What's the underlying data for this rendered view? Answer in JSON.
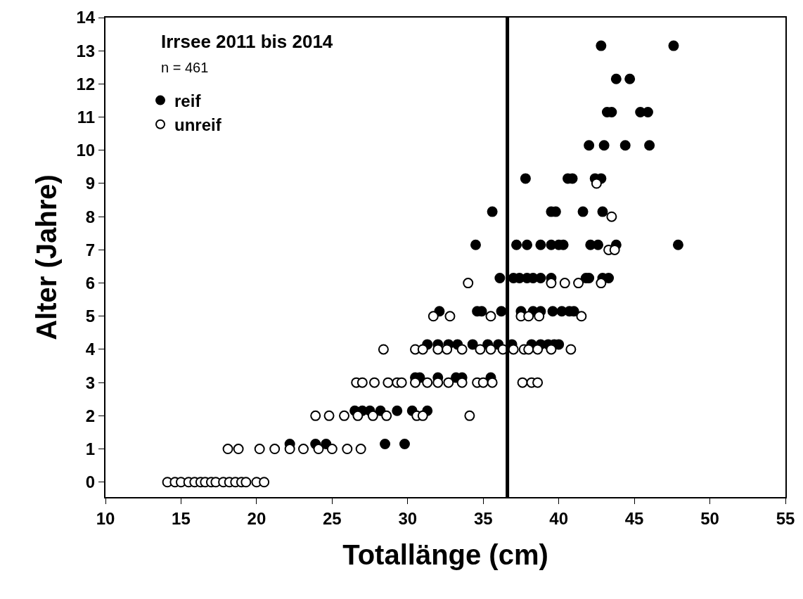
{
  "chart_data": {
    "type": "scatter",
    "xlabel": "Totallänge (cm)",
    "ylabel": "Alter (Jahre)",
    "annotations": [
      "Irrsee 2011 bis 2014",
      "n = 461"
    ],
    "series": [
      {
        "name": "reif",
        "color": "#000000",
        "marker": "circle",
        "x": [
          22.2,
          23.9,
          24.6,
          28.5,
          29.8,
          26.5,
          27.0,
          27.5,
          28.2,
          29.3,
          30.3,
          31.3,
          30.5,
          30.8,
          32.0,
          33.2,
          33.6,
          35.5,
          31.3,
          32.0,
          32.7,
          33.3,
          34.3,
          35.3,
          36.0,
          36.9,
          38.2,
          38.8,
          39.3,
          39.7,
          40.0,
          32.1,
          34.6,
          34.9,
          36.2,
          37.5,
          38.3,
          38.8,
          39.6,
          40.2,
          40.7,
          41.0,
          36.1,
          37.0,
          37.4,
          37.9,
          38.3,
          38.8,
          39.5,
          41.8,
          42.0,
          42.9,
          43.3,
          34.5,
          37.2,
          37.9,
          38.8,
          39.5,
          40.0,
          40.3,
          42.1,
          42.6,
          43.8,
          47.9,
          35.6,
          39.5,
          39.8,
          41.6,
          42.9,
          37.8,
          40.6,
          40.9,
          42.4,
          42.8,
          42.0,
          43.0,
          44.4,
          46.0,
          43.2,
          43.5,
          45.4,
          45.9,
          43.8,
          44.7,
          42.8,
          47.6
        ],
        "values": [
          1.15,
          1.15,
          1.15,
          1.15,
          1.15,
          2.15,
          2.15,
          2.15,
          2.15,
          2.15,
          2.15,
          2.15,
          3.15,
          3.15,
          3.15,
          3.15,
          3.15,
          3.15,
          4.15,
          4.15,
          4.15,
          4.15,
          4.15,
          4.15,
          4.15,
          4.15,
          4.15,
          4.15,
          4.15,
          4.15,
          4.15,
          5.15,
          5.15,
          5.15,
          5.15,
          5.15,
          5.15,
          5.15,
          5.15,
          5.15,
          5.15,
          5.15,
          6.15,
          6.15,
          6.15,
          6.15,
          6.15,
          6.15,
          6.15,
          6.15,
          6.15,
          6.15,
          6.15,
          7.15,
          7.15,
          7.15,
          7.15,
          7.15,
          7.15,
          7.15,
          7.15,
          7.15,
          7.15,
          7.15,
          8.15,
          8.15,
          8.15,
          8.15,
          8.15,
          9.15,
          9.15,
          9.15,
          9.15,
          9.15,
          10.15,
          10.15,
          10.15,
          10.15,
          11.15,
          11.15,
          11.15,
          11.15,
          12.15,
          12.15,
          13.15,
          13.15
        ]
      },
      {
        "name": "unreif",
        "color": "#ffffff",
        "marker": "circle",
        "x": [
          14.1,
          14.6,
          15.0,
          15.5,
          15.9,
          16.3,
          16.6,
          17.0,
          17.3,
          17.8,
          18.2,
          18.6,
          19.0,
          19.3,
          20.0,
          20.5,
          18.1,
          18.8,
          20.2,
          21.2,
          22.2,
          23.1,
          24.1,
          25.0,
          26.0,
          26.9,
          23.9,
          24.8,
          25.8,
          26.7,
          27.7,
          28.6,
          30.6,
          31.0,
          34.1,
          26.6,
          27.0,
          27.8,
          28.7,
          29.3,
          29.6,
          30.5,
          31.3,
          32.0,
          32.7,
          33.6,
          34.6,
          35.0,
          35.6,
          37.6,
          38.2,
          38.6,
          28.4,
          30.5,
          31.0,
          32.0,
          32.6,
          33.6,
          34.8,
          35.5,
          36.3,
          37.0,
          37.7,
          38.0,
          38.6,
          39.5,
          40.8,
          31.7,
          32.8,
          35.5,
          37.5,
          38.0,
          38.7,
          41.5,
          34.0,
          39.5,
          40.4,
          41.3,
          42.8,
          43.3,
          43.7,
          43.5,
          42.5
        ],
        "values": [
          0,
          0,
          0,
          0,
          0,
          0,
          0,
          0,
          0,
          0,
          0,
          0,
          0,
          0,
          0,
          0,
          1,
          1,
          1,
          1,
          1,
          1,
          1,
          1,
          1,
          1,
          2,
          2,
          2,
          2,
          2,
          2,
          2,
          2,
          2,
          3,
          3,
          3,
          3,
          3,
          3,
          3,
          3,
          3,
          3,
          3,
          3,
          3,
          3,
          3,
          3,
          3,
          4,
          4,
          4,
          4,
          4,
          4,
          4,
          4,
          4,
          4,
          4,
          4,
          4,
          4,
          4,
          5,
          5,
          5,
          5,
          5,
          5,
          5,
          6,
          6,
          6,
          6,
          6,
          7,
          7,
          8,
          9
        ]
      }
    ],
    "ref_lines": [
      {
        "axis": "x",
        "value": 36.6,
        "color": "#000000"
      }
    ],
    "xlim": [
      10,
      55
    ],
    "xticks": [
      10,
      15,
      20,
      25,
      30,
      35,
      40,
      45,
      50,
      55
    ],
    "ylim": [
      -0.45,
      14
    ],
    "yticks": [
      0,
      1,
      2,
      3,
      4,
      5,
      6,
      7,
      8,
      9,
      10,
      11,
      12,
      13,
      14
    ],
    "legend": "top left"
  }
}
